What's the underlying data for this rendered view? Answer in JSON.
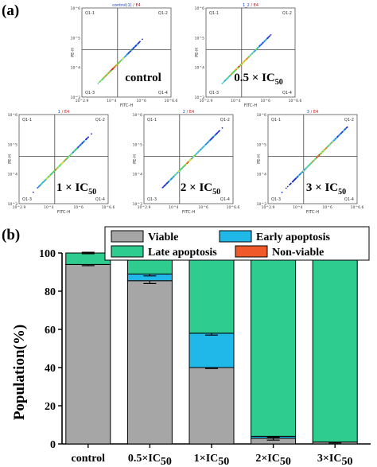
{
  "panel_a": {
    "label": "(a)",
    "plots": [
      {
        "title_a": "control(1)",
        "title_b": " / E4",
        "sample_main": "control",
        "sample_sub": "",
        "spread": 0.0
      },
      {
        "title_a": "1_2",
        "title_b": " / E4",
        "sample_main": "0.5 × IC",
        "sample_sub": "50",
        "spread": 0.25
      },
      {
        "title_a": "1",
        "title_b": " / E4",
        "sample_main": "1 × IC",
        "sample_sub": "50",
        "spread": 0.5
      },
      {
        "title_a": "2",
        "title_b": " / E4",
        "sample_main": "2 × IC",
        "sample_sub": "50",
        "spread": 0.75
      },
      {
        "title_a": "3",
        "title_b": " / E4",
        "sample_main": "3 × IC",
        "sample_sub": "50",
        "spread": 1.0
      }
    ],
    "quadrants": [
      "Q1-1",
      "Q1-2",
      "Q1-3",
      "Q1-4"
    ],
    "xlabel": "FITC-H",
    "ylabel": "PE-H",
    "x_ticks": [
      "10^2.9",
      "10^4",
      "10^6",
      "10^6.6"
    ],
    "y_ticks": [
      "10^3",
      "10^4",
      "10^5",
      "10^6"
    ]
  },
  "panel_b": {
    "label": "(b)"
  },
  "chart_data": {
    "type": "bar",
    "stacked": true,
    "categories": [
      "control",
      "0.5×IC50",
      "1×IC50",
      "2×IC50",
      "3×IC50"
    ],
    "category_main": [
      "control",
      "0.5×IC",
      "1×IC",
      "2×IC",
      "3×IC"
    ],
    "category_sub": [
      "",
      "50",
      "50",
      "50",
      "50"
    ],
    "series": [
      {
        "name": "Viable",
        "color": "#a6a6a6",
        "values": [
          94,
          85.5,
          40,
          3,
          1
        ]
      },
      {
        "name": "Early apoptosis",
        "color": "#1fb8e8",
        "values": [
          0,
          3.5,
          18,
          1,
          0
        ]
      },
      {
        "name": "Late apoptosis",
        "color": "#2ecc8f",
        "values": [
          6,
          11,
          42,
          96,
          99
        ]
      },
      {
        "name": "Non-viable",
        "color": "#f05a2a",
        "values": [
          0,
          0,
          0,
          0,
          0
        ]
      }
    ],
    "error_bars": {
      "Viable": [
        0.6,
        1.5,
        0.5,
        1.0,
        0.5
      ],
      "Early apoptosis": [
        0,
        1.0,
        1.0,
        0.5,
        0
      ],
      "Late apoptosis": [
        0.4,
        0.5,
        0.5,
        0.4,
        0.4
      ]
    },
    "ylabel": "Population(%)",
    "ylim": [
      0,
      100
    ],
    "yticks": [
      0,
      20,
      40,
      60,
      80,
      100
    ],
    "legend": [
      "Viable",
      "Early apoptosis",
      "Late apoptosis",
      "Non-viable"
    ],
    "legend_placement": "top"
  }
}
